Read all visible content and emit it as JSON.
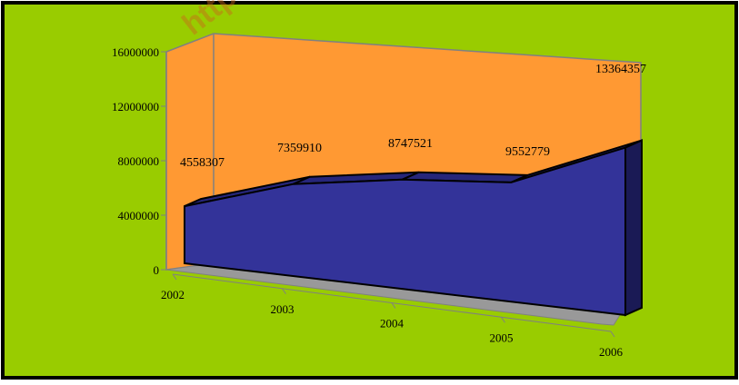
{
  "watermark": "http",
  "chart_data": {
    "type": "area",
    "x": [
      2002,
      2003,
      2004,
      2005,
      2006
    ],
    "values": [
      4558307,
      7359910,
      8747521,
      9552779,
      13364357
    ],
    "data_labels": [
      "4558307",
      "7359910",
      "8747521",
      "9552779",
      "13364357"
    ],
    "x_tick_labels": [
      "2002",
      "2003",
      "2004",
      "2005",
      "2006"
    ],
    "y_tick_labels": [
      "0",
      "4000000",
      "8000000",
      "12000000",
      "16000000"
    ],
    "ylim": [
      0,
      16000000
    ],
    "title": "",
    "xlabel": "",
    "ylabel": "",
    "grid": false,
    "legend": "none",
    "style": "3d-area"
  },
  "colors": {
    "background": "#99cc00",
    "wall": "#ff9933",
    "floor": "#999999",
    "series_front": "#333399",
    "series_top": "#26267a",
    "series_side": "#1a1a55",
    "frame_border": "#000000",
    "axis_line": "#808080"
  }
}
